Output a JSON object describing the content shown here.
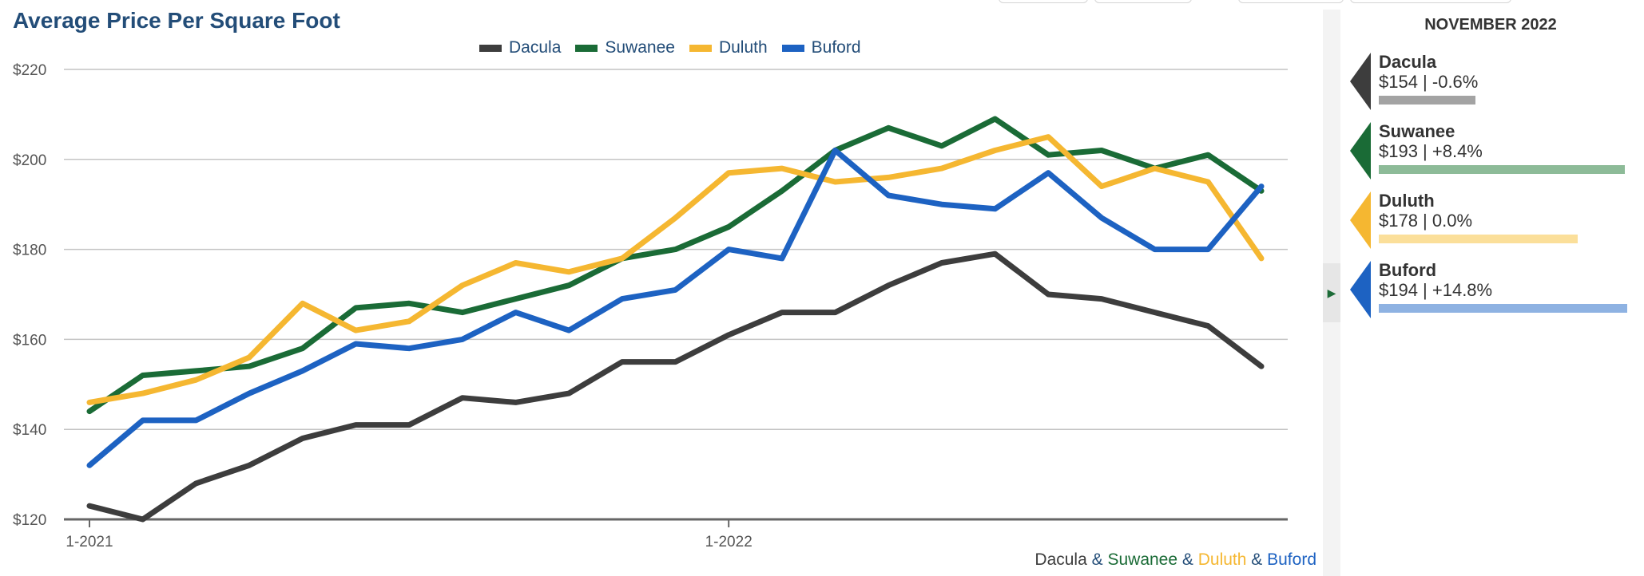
{
  "title": "Average Price Per Square Foot",
  "legend": [
    {
      "name": "Dacula",
      "color": "#3d3d3d"
    },
    {
      "name": "Suwanee",
      "color": "#1a6b36"
    },
    {
      "name": "Duluth",
      "color": "#f5b731"
    },
    {
      "name": "Buford",
      "color": "#1d62c2"
    }
  ],
  "chart_data": {
    "type": "line",
    "x_tick_labels": [
      "1-2021",
      "1-2022"
    ],
    "y_tick_labels": [
      "$120",
      "$140",
      "$160",
      "$180",
      "$200",
      "$220"
    ],
    "ylim": [
      120,
      220
    ],
    "y_ticks": [
      120,
      140,
      160,
      180,
      200,
      220
    ],
    "grid": true,
    "legend_position": "top",
    "x": [
      "1-2021",
      "2-2021",
      "3-2021",
      "4-2021",
      "5-2021",
      "6-2021",
      "7-2021",
      "8-2021",
      "9-2021",
      "10-2021",
      "11-2021",
      "12-2021",
      "1-2022",
      "2-2022",
      "3-2022",
      "4-2022",
      "5-2022",
      "6-2022",
      "7-2022",
      "8-2022",
      "9-2022",
      "10-2022",
      "11-2022"
    ],
    "series": [
      {
        "name": "Dacula",
        "color": "#3d3d3d",
        "values": [
          123,
          120,
          128,
          132,
          138,
          141,
          141,
          147,
          146,
          148,
          155,
          155,
          161,
          166,
          166,
          172,
          177,
          179,
          170,
          169,
          166,
          163,
          154
        ]
      },
      {
        "name": "Suwanee",
        "color": "#1a6b36",
        "values": [
          144,
          152,
          153,
          154,
          158,
          167,
          168,
          166,
          169,
          172,
          178,
          180,
          185,
          193,
          202,
          207,
          203,
          209,
          201,
          202,
          198,
          201,
          193
        ]
      },
      {
        "name": "Duluth",
        "color": "#f5b731",
        "values": [
          146,
          148,
          151,
          156,
          168,
          162,
          164,
          172,
          177,
          175,
          178,
          187,
          197,
          198,
          195,
          196,
          198,
          202,
          205,
          194,
          198,
          195,
          178
        ]
      },
      {
        "name": "Buford",
        "color": "#1d62c2",
        "values": [
          132,
          142,
          142,
          148,
          153,
          159,
          158,
          160,
          166,
          162,
          169,
          171,
          180,
          178,
          202,
          192,
          190,
          189,
          197,
          187,
          180,
          180,
          194
        ]
      }
    ]
  },
  "footer": {
    "names": [
      "Dacula",
      "Suwanee",
      "Duluth",
      "Buford"
    ],
    "colors": [
      "#3d3d3d",
      "#1a6b36",
      "#f5b731",
      "#1d62c2"
    ],
    "separator": " & "
  },
  "panel": {
    "title": "NOVEMBER 2022",
    "cards": [
      {
        "name": "Dacula",
        "stat": "$154 | -0.6%",
        "color": "#3d3d3d",
        "bar_color": "#a3a3a3",
        "bar_level": 0.39
      },
      {
        "name": "Suwanee",
        "stat": "$193 | +8.4%",
        "color": "#1a6b36",
        "bar_color": "#8dbb98",
        "bar_level": 0.99
      },
      {
        "name": "Duluth",
        "stat": "$178 | 0.0%",
        "color": "#f5b731",
        "bar_color": "#fbdf9a",
        "bar_level": 0.8
      },
      {
        "name": "Buford",
        "stat": "$194 | +14.8%",
        "color": "#1d62c2",
        "bar_color": "#8eb2e2",
        "bar_level": 1.0
      }
    ]
  },
  "toggle_icon": "chevron-right-icon"
}
